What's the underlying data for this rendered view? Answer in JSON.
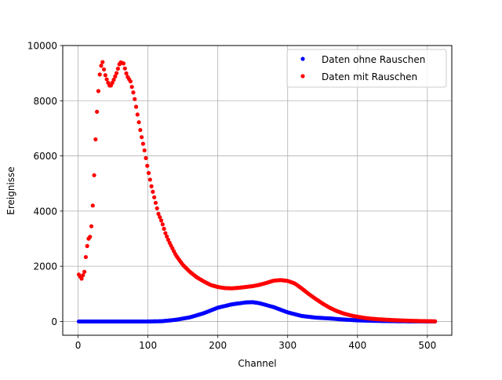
{
  "chart_data": {
    "type": "scatter",
    "xlabel": "Channel",
    "ylabel": "Ereignisse",
    "xlim": [
      -22,
      535
    ],
    "ylim": [
      -500,
      10000
    ],
    "x_ticks": [
      0,
      100,
      200,
      300,
      400,
      500
    ],
    "y_ticks": [
      0,
      2000,
      4000,
      6000,
      8000,
      10000
    ],
    "x_tick_labels": [
      "0",
      "100",
      "200",
      "300",
      "400",
      "500"
    ],
    "y_tick_labels": [
      "0",
      "2000",
      "4000",
      "6000",
      "8000",
      "10000"
    ],
    "grid": true,
    "legend_position": "top-right",
    "x_sampling": {
      "start": 1,
      "end": 511,
      "step": 2
    },
    "series": [
      {
        "name": "Daten ohne Rauschen",
        "color": "#0000ff",
        "curve_x": [
          0,
          100,
          120,
          140,
          160,
          180,
          200,
          220,
          240,
          250,
          260,
          280,
          300,
          320,
          340,
          360,
          380,
          400,
          420,
          440,
          460,
          480,
          500,
          511
        ],
        "curve_y": [
          0,
          0,
          10,
          60,
          150,
          300,
          500,
          620,
          690,
          700,
          660,
          520,
          330,
          200,
          140,
          110,
          70,
          40,
          25,
          15,
          8,
          4,
          2,
          0
        ]
      },
      {
        "name": "Daten mit Rauschen",
        "color": "#ff0000",
        "curve_x": [
          1,
          5,
          9,
          12,
          15,
          18,
          20,
          22,
          24,
          26,
          28,
          30,
          32,
          35,
          38,
          42,
          46,
          50,
          55,
          60,
          65,
          70,
          75,
          80,
          85,
          90,
          95,
          100,
          105,
          110,
          115,
          120,
          125,
          130,
          140,
          150,
          160,
          170,
          180,
          190,
          200,
          210,
          220,
          230,
          240,
          250,
          260,
          270,
          280,
          290,
          300,
          310,
          320,
          330,
          340,
          350,
          360,
          370,
          380,
          390,
          400,
          410,
          420,
          430,
          440,
          450,
          460,
          470,
          480,
          490,
          500,
          511
        ],
        "curve_y": [
          1700,
          1550,
          1800,
          2600,
          3000,
          3100,
          3800,
          4600,
          6000,
          7200,
          8000,
          8700,
          9200,
          9400,
          9000,
          8700,
          8500,
          8700,
          9000,
          9400,
          9350,
          8900,
          8700,
          8200,
          7500,
          6800,
          6200,
          5500,
          4900,
          4400,
          3900,
          3600,
          3200,
          2900,
          2400,
          2050,
          1800,
          1600,
          1450,
          1320,
          1250,
          1210,
          1200,
          1220,
          1250,
          1280,
          1330,
          1400,
          1480,
          1500,
          1470,
          1380,
          1200,
          1000,
          820,
          650,
          500,
          380,
          290,
          220,
          170,
          130,
          100,
          80,
          65,
          50,
          40,
          30,
          22,
          15,
          10,
          5
        ]
      }
    ]
  }
}
